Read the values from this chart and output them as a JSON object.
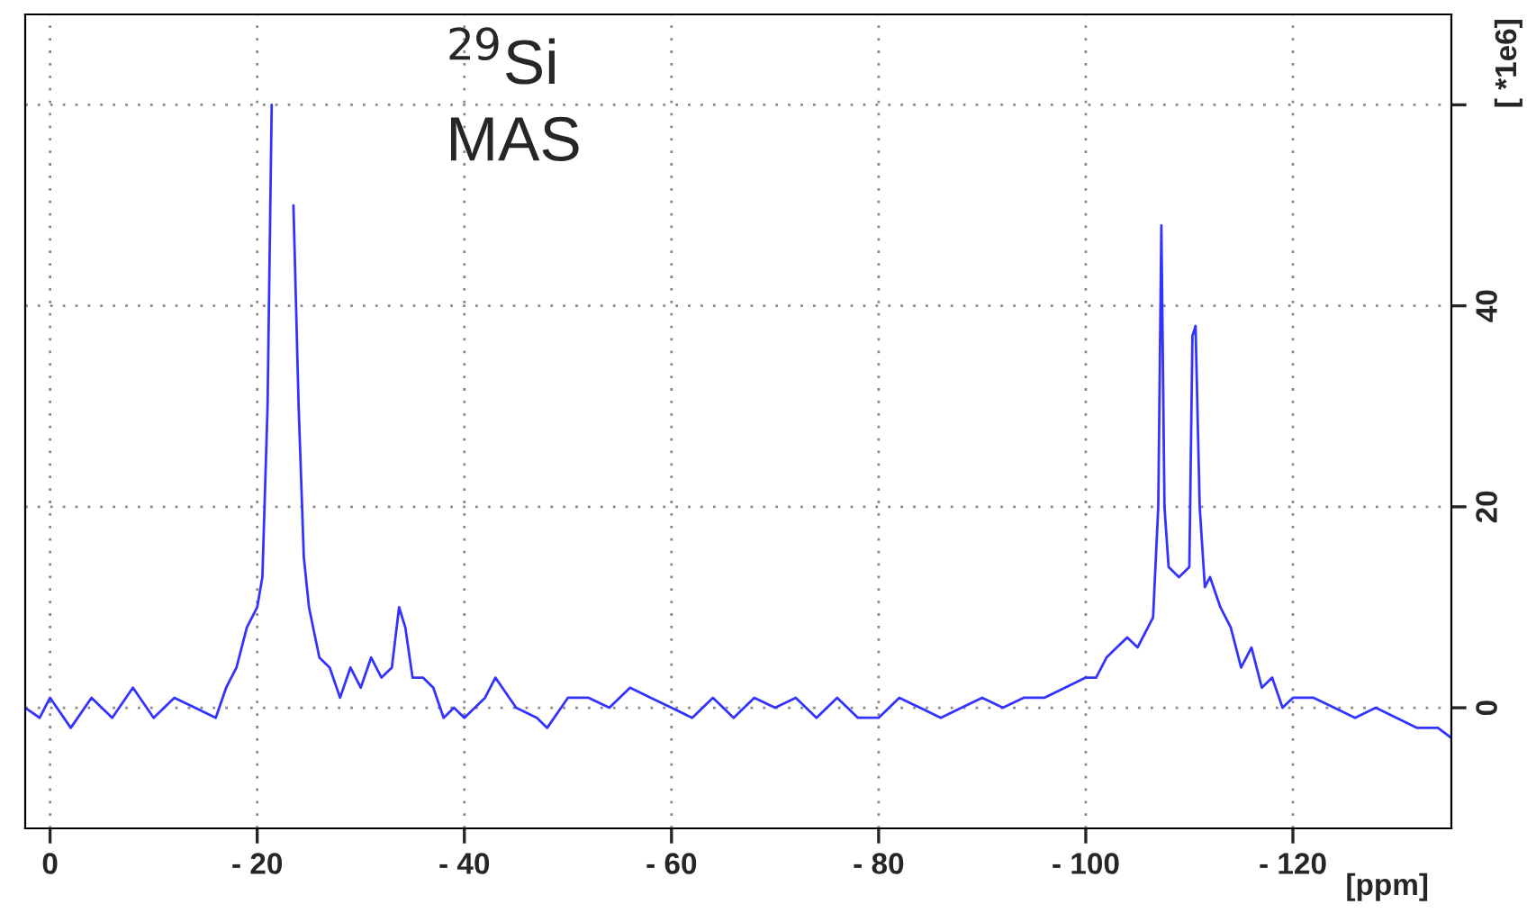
{
  "chart_data": {
    "type": "line",
    "annotations": [
      "$^{29}$Si\nMAS"
    ],
    "xlabel": "[ppm]",
    "ylabel": "[ *1e6]",
    "xlim": [
      2.4,
      -135.3
    ],
    "ylim": [
      -12,
      69
    ],
    "xticks": [
      {
        "value": 0,
        "label": "0"
      },
      {
        "value": -20,
        "label": "- 20"
      },
      {
        "value": -40,
        "label": "- 40"
      },
      {
        "value": -60,
        "label": "- 60"
      },
      {
        "value": -80,
        "label": "- 80"
      },
      {
        "value": -100,
        "label": "- 100"
      },
      {
        "value": -120,
        "label": "- 120"
      }
    ],
    "yticks": [
      0,
      20,
      40,
      {
        "value": 60,
        "label": null
      }
    ],
    "grid": true,
    "line_style": "solid",
    "marker": "none",
    "series": [
      {
        "color": "#3333ff",
        "x": [
          2.4,
          1,
          0,
          -2,
          -4,
          -6,
          -8,
          -10,
          -12,
          -14,
          -16,
          -17,
          -18,
          -19,
          -20,
          -20.5,
          -21,
          -21.4,
          -21.7,
          -23.2,
          -23.5,
          -24,
          -24.5,
          -25,
          -26,
          -27,
          -28,
          -29,
          -30,
          -31,
          -32,
          -33,
          -33.7,
          -34.3,
          -35,
          -36,
          -37,
          -38,
          -39,
          -40,
          -42,
          -43,
          -45,
          -47,
          -48,
          -50,
          -52,
          -54,
          -56,
          -58,
          -60,
          -62,
          -64,
          -66,
          -68,
          -70,
          -72,
          -74,
          -76,
          -78,
          -80,
          -82,
          -84,
          -86,
          -88,
          -90,
          -92,
          -94,
          -96,
          -98,
          -100,
          -101,
          -102,
          -103,
          -104,
          -105,
          -106,
          -106.5,
          -107,
          -107.3,
          -107.6,
          -108,
          -109,
          -110,
          -110.3,
          -110.6,
          -111,
          -111.5,
          -112,
          -113,
          -114,
          -115,
          -116,
          -117,
          -118,
          -119,
          -120,
          -122,
          -124,
          -126,
          -128,
          -130,
          -132,
          -134,
          -135.3
        ],
        "values": [
          0,
          -1,
          1,
          -2,
          1,
          -1,
          2,
          -1,
          1,
          0,
          -1,
          2,
          4,
          8,
          10,
          13,
          30,
          60,
          null,
          null,
          50,
          30,
          15,
          10,
          5,
          4,
          1,
          4,
          2,
          5,
          3,
          4,
          10,
          8,
          3,
          3,
          2,
          -1,
          0,
          -1,
          1,
          3,
          0,
          -1,
          -2,
          1,
          1,
          0,
          2,
          1,
          0,
          -1,
          1,
          -1,
          1,
          0,
          1,
          -1,
          1,
          -1,
          -1,
          1,
          0,
          -1,
          0,
          1,
          0,
          1,
          1,
          2,
          3,
          3,
          5,
          6,
          7,
          6,
          8,
          9,
          20,
          48,
          20,
          14,
          13,
          14,
          37,
          38,
          20,
          12,
          13,
          10,
          8,
          4,
          6,
          2,
          3,
          0,
          1,
          1,
          0,
          -1,
          0,
          -1,
          -2,
          -2,
          -3
        ]
      }
    ]
  }
}
